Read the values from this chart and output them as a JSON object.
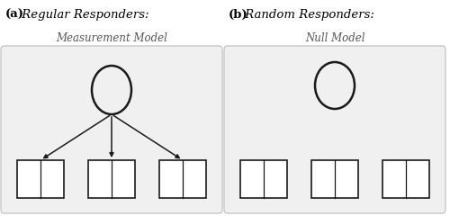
{
  "panel_a_label": "(a)",
  "panel_a_title": " Regular Responders:",
  "panel_a_subtitle": "Measurement Model",
  "panel_b_label": "(b)",
  "panel_b_title": " Random Responders:",
  "panel_b_subtitle": "Null Model",
  "bg_color": "#ffffff",
  "box_color": "#1a1a1a",
  "ellipse_color": "#1a1a1a",
  "arrow_color": "#1a1a1a",
  "panel_bg": "#f0f0f0",
  "panel_edge": "#bbbbbb",
  "label_fontsize": 9.5,
  "subtitle_fontsize": 8.5
}
